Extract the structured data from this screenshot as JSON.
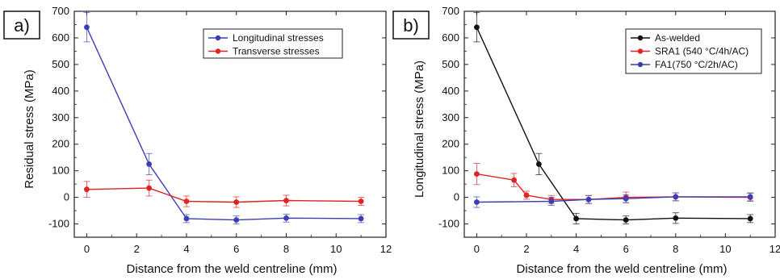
{
  "chart_data": [
    {
      "type": "line",
      "panel_label": "a)",
      "xlabel": "Distance from the weld centreline (mm)",
      "ylabel": "Residual stress (MPa)",
      "xlim": [
        -0.5,
        12
      ],
      "ylim": [
        -150,
        700
      ],
      "xticks": [
        "0",
        "2",
        "4",
        "6",
        "8",
        "10",
        "12"
      ],
      "yticks": [
        "-100",
        "0",
        "100",
        "200",
        "300",
        "400",
        "500",
        "600",
        "700"
      ],
      "legend_position": "top-right",
      "series": [
        {
          "name": "Longitudinal stresses",
          "color": "#3a3fb5",
          "x": [
            0,
            2.5,
            4,
            6,
            8,
            11
          ],
          "y": [
            640,
            125,
            -80,
            -85,
            -78,
            -80
          ],
          "err": [
            55,
            40,
            15,
            15,
            15,
            15
          ]
        },
        {
          "name": "Transverse stresses",
          "color": "#e02424",
          "x": [
            0,
            2.5,
            4,
            6,
            8,
            11
          ],
          "y": [
            30,
            35,
            -15,
            -18,
            -12,
            -15
          ],
          "err": [
            30,
            30,
            20,
            20,
            20,
            15
          ]
        }
      ]
    },
    {
      "type": "line",
      "panel_label": "b)",
      "xlabel": "Distance from the weld centreline (mm)",
      "ylabel": "Longitudinal stress (MPa)",
      "xlim": [
        -0.5,
        12
      ],
      "ylim": [
        -150,
        700
      ],
      "xticks": [
        "0",
        "2",
        "4",
        "6",
        "8",
        "10",
        "12"
      ],
      "yticks": [
        "-100",
        "0",
        "100",
        "200",
        "300",
        "400",
        "500",
        "600",
        "700"
      ],
      "legend_position": "top-right",
      "series": [
        {
          "name": "As-welded",
          "color": "#111111",
          "x": [
            0,
            2.5,
            4,
            6,
            8,
            11
          ],
          "y": [
            640,
            125,
            -80,
            -85,
            -78,
            -80
          ],
          "err": [
            55,
            40,
            20,
            15,
            20,
            15
          ]
        },
        {
          "name": "SRA1 (540 °C/4h/AC)",
          "color": "#e02424",
          "x": [
            0,
            1.5,
            2,
            3,
            4.5,
            6,
            8,
            11
          ],
          "y": [
            88,
            65,
            8,
            -8,
            -8,
            0,
            2,
            0
          ],
          "err": [
            40,
            25,
            15,
            15,
            15,
            20,
            15,
            15
          ]
        },
        {
          "name": "FA1(750 °C/2h/AC)",
          "color": "#3a3fb5",
          "x": [
            0,
            3,
            4.5,
            6,
            8,
            11
          ],
          "y": [
            -18,
            -15,
            -8,
            -5,
            2,
            2
          ],
          "err": [
            20,
            15,
            15,
            15,
            15,
            15
          ]
        }
      ]
    }
  ]
}
